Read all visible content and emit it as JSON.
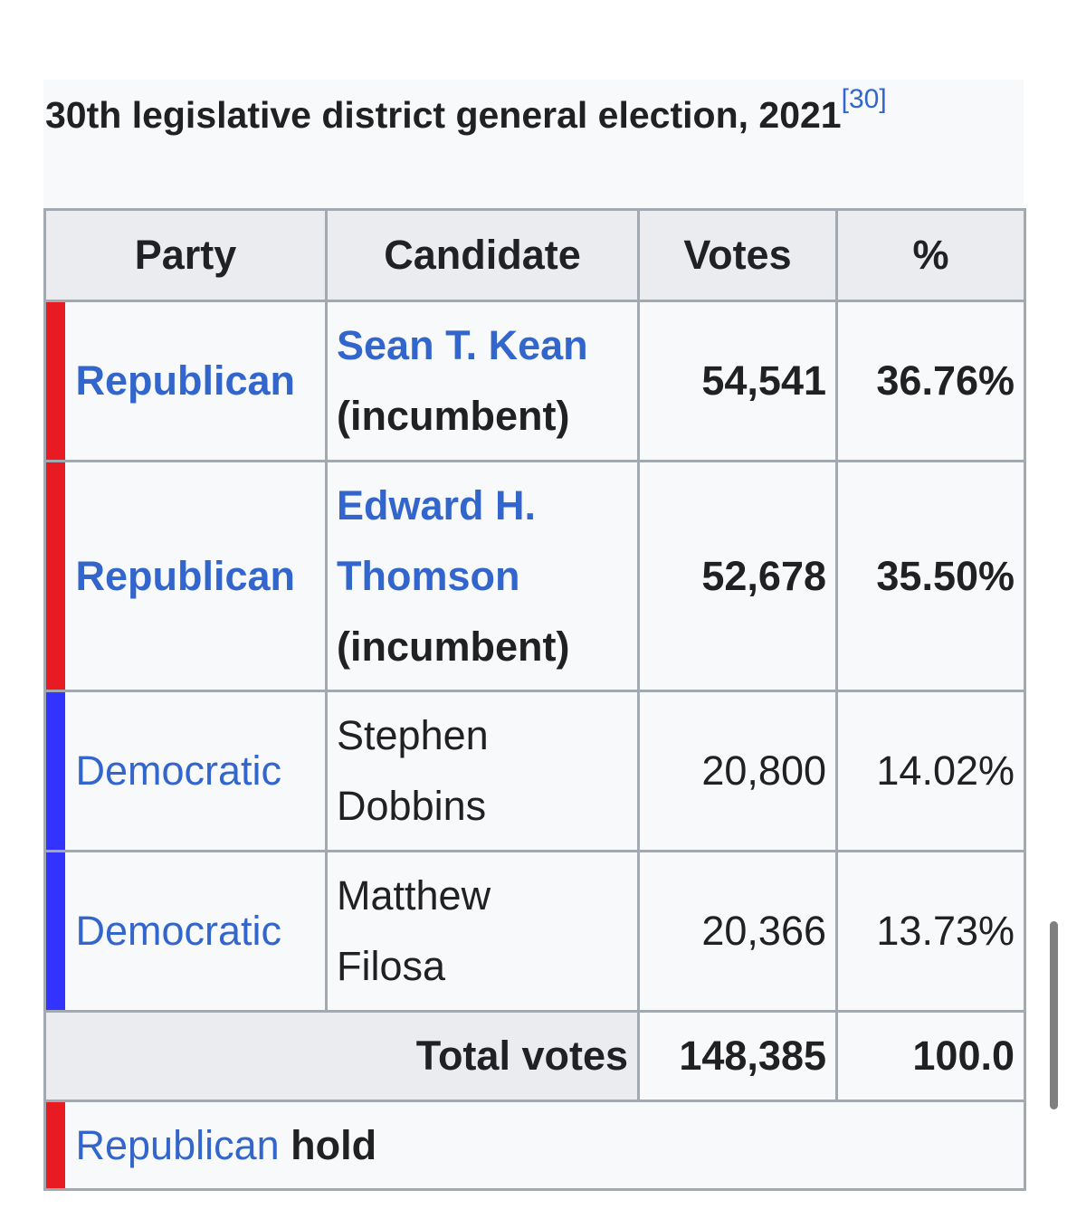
{
  "caption": {
    "title": "30th legislative district general election, 2021",
    "ref": "[30]"
  },
  "headers": {
    "party": "Party",
    "candidate": "Candidate",
    "votes": "Votes",
    "percent": "%"
  },
  "rows": [
    {
      "party": "Republican",
      "party_color": "#e81b23",
      "candidate_line1": "Sean T. Kean",
      "candidate_line2": "(incumbent)",
      "votes": "54,541",
      "percent": "36.76%"
    },
    {
      "party": "Republican",
      "party_color": "#e81b23",
      "candidate_line1": "Edward H.",
      "candidate_line2": "Thomson",
      "candidate_line3": "(incumbent)",
      "votes": "52,678",
      "percent": "35.50%"
    },
    {
      "party": "Democratic",
      "party_color": "#3333ff",
      "candidate_line1": "Stephen",
      "candidate_line2": "Dobbins",
      "votes": "20,800",
      "percent": "14.02%"
    },
    {
      "party": "Democratic",
      "party_color": "#3333ff",
      "candidate_line1": "Matthew",
      "candidate_line2": "Filosa",
      "votes": "20,366",
      "percent": "13.73%"
    }
  ],
  "total": {
    "label": "Total votes",
    "votes": "148,385",
    "percent": "100.0"
  },
  "result": {
    "party": "Republican",
    "outcome": "hold"
  },
  "colors": {
    "link": "#3366cc",
    "republican": "#e81b23",
    "democratic": "#3333ff"
  }
}
